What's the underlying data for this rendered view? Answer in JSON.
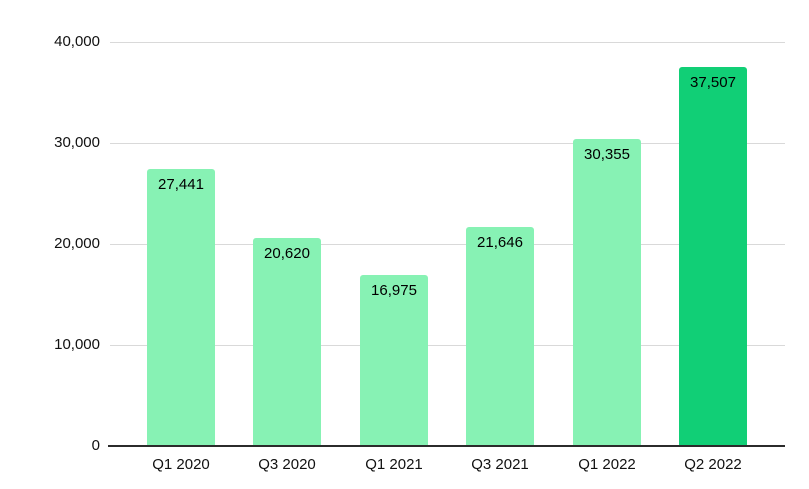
{
  "chart_data": {
    "type": "bar",
    "title": "",
    "categories": [
      "Q1 2020",
      "Q3 2020",
      "Q1 2021",
      "Q3 2021",
      "Q1 2022",
      "Q2 2022"
    ],
    "values": [
      27441,
      20620,
      16975,
      21646,
      30355,
      37507
    ],
    "value_labels": [
      "27,441",
      "20,620",
      "16,975",
      "21,646",
      "30,355",
      "37,507"
    ],
    "xlabel": "",
    "ylabel": "",
    "ylim": [
      0,
      40000
    ],
    "yticks": [
      0,
      10000,
      20000,
      30000,
      40000
    ],
    "ytick_labels": [
      "0",
      "10,000",
      "20,000",
      "30,000",
      "40,000"
    ],
    "grid": "horizontal",
    "legend_position": "none",
    "highlight_index": 5,
    "colors": {
      "bar_default": "#87f2b4",
      "bar_highlight": "#11cf76",
      "data_label": "#000000",
      "gridline": "#d9d9d9",
      "axis_line": "#2b2b2b",
      "tick_label": "#111111",
      "background": "#ffffff"
    }
  }
}
